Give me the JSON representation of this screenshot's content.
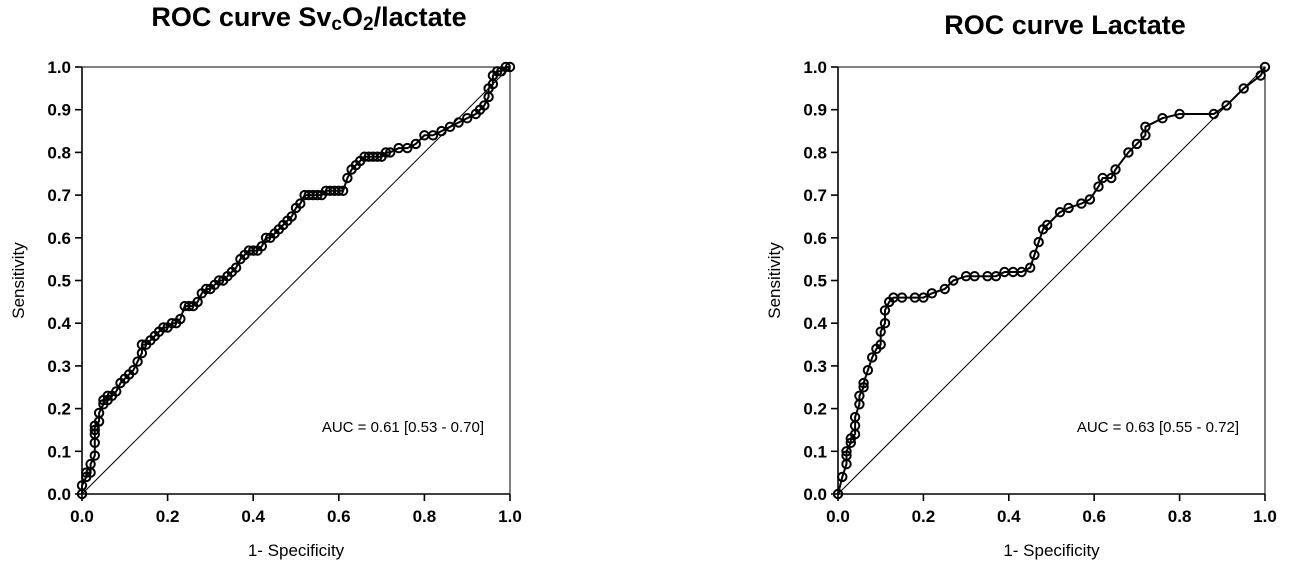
{
  "chart_data": [
    {
      "type": "line",
      "title_main": "ROC curve Sv",
      "title_sub1": "c",
      "title_mid": "O",
      "title_sub2": "2",
      "title_end": "/lactate",
      "xlabel": "1- Specificity",
      "ylabel": "Sensitivity",
      "xlim": [
        0,
        1
      ],
      "ylim": [
        0,
        1
      ],
      "x_ticks": [
        "0.0",
        "0.2",
        "0.4",
        "0.6",
        "0.8",
        "1.0"
      ],
      "y_ticks": [
        "0.0",
        "0.1",
        "0.2",
        "0.3",
        "0.4",
        "0.5",
        "0.6",
        "0.7",
        "0.8",
        "0.9",
        "1.0"
      ],
      "annotation": "AUC = 0.61 [0.53 - 0.70]",
      "reference_line": true,
      "series": [
        {
          "x": [
            0.0,
            0.0,
            0.01,
            0.01,
            0.02,
            0.02,
            0.03,
            0.03,
            0.03,
            0.03,
            0.03,
            0.04,
            0.04,
            0.05,
            0.05,
            0.06,
            0.06,
            0.07,
            0.08,
            0.09,
            0.1,
            0.11,
            0.12,
            0.13,
            0.14,
            0.14,
            0.15,
            0.16,
            0.17,
            0.18,
            0.19,
            0.2,
            0.21,
            0.22,
            0.23,
            0.24,
            0.25,
            0.26,
            0.27,
            0.28,
            0.29,
            0.3,
            0.31,
            0.32,
            0.33,
            0.34,
            0.35,
            0.36,
            0.37,
            0.38,
            0.39,
            0.4,
            0.41,
            0.42,
            0.43,
            0.44,
            0.45,
            0.46,
            0.47,
            0.48,
            0.49,
            0.5,
            0.51,
            0.52,
            0.53,
            0.54,
            0.55,
            0.56,
            0.57,
            0.58,
            0.59,
            0.6,
            0.61,
            0.62,
            0.63,
            0.64,
            0.65,
            0.66,
            0.67,
            0.68,
            0.69,
            0.7,
            0.71,
            0.72,
            0.74,
            0.76,
            0.78,
            0.8,
            0.82,
            0.84,
            0.86,
            0.88,
            0.9,
            0.92,
            0.93,
            0.94,
            0.95,
            0.95,
            0.96,
            0.96,
            0.97,
            0.98,
            0.99,
            1.0
          ],
          "y": [
            0.0,
            0.02,
            0.04,
            0.05,
            0.05,
            0.07,
            0.09,
            0.12,
            0.14,
            0.15,
            0.16,
            0.17,
            0.19,
            0.21,
            0.22,
            0.22,
            0.23,
            0.23,
            0.24,
            0.26,
            0.27,
            0.28,
            0.29,
            0.31,
            0.33,
            0.35,
            0.35,
            0.36,
            0.37,
            0.38,
            0.39,
            0.39,
            0.4,
            0.4,
            0.41,
            0.44,
            0.44,
            0.44,
            0.45,
            0.47,
            0.48,
            0.48,
            0.49,
            0.5,
            0.5,
            0.51,
            0.52,
            0.53,
            0.55,
            0.56,
            0.57,
            0.57,
            0.57,
            0.58,
            0.6,
            0.6,
            0.61,
            0.62,
            0.63,
            0.64,
            0.65,
            0.67,
            0.68,
            0.7,
            0.7,
            0.7,
            0.7,
            0.7,
            0.71,
            0.71,
            0.71,
            0.71,
            0.71,
            0.74,
            0.76,
            0.77,
            0.78,
            0.79,
            0.79,
            0.79,
            0.79,
            0.79,
            0.8,
            0.8,
            0.81,
            0.81,
            0.82,
            0.84,
            0.84,
            0.85,
            0.86,
            0.87,
            0.88,
            0.89,
            0.9,
            0.91,
            0.93,
            0.95,
            0.96,
            0.98,
            0.99,
            0.99,
            1.0,
            1.0
          ]
        }
      ]
    },
    {
      "type": "line",
      "title": "ROC curve Lactate",
      "xlabel": "1- Specificity",
      "ylabel": "Sensitivity",
      "xlim": [
        0,
        1
      ],
      "ylim": [
        0,
        1
      ],
      "x_ticks": [
        "0.0",
        "0.2",
        "0.4",
        "0.6",
        "0.8",
        "1.0"
      ],
      "y_ticks": [
        "0.0",
        "0.1",
        "0.2",
        "0.3",
        "0.4",
        "0.5",
        "0.6",
        "0.7",
        "0.8",
        "0.9",
        "1.0"
      ],
      "annotation": "AUC = 0.63 [0.55 - 0.72]",
      "reference_line": true,
      "series": [
        {
          "x": [
            0.0,
            0.01,
            0.02,
            0.02,
            0.02,
            0.03,
            0.03,
            0.04,
            0.04,
            0.04,
            0.05,
            0.05,
            0.06,
            0.06,
            0.07,
            0.08,
            0.09,
            0.1,
            0.1,
            0.11,
            0.11,
            0.12,
            0.13,
            0.15,
            0.18,
            0.2,
            0.22,
            0.25,
            0.27,
            0.3,
            0.32,
            0.35,
            0.37,
            0.39,
            0.41,
            0.43,
            0.45,
            0.46,
            0.47,
            0.48,
            0.49,
            0.52,
            0.54,
            0.57,
            0.59,
            0.61,
            0.62,
            0.64,
            0.65,
            0.68,
            0.7,
            0.72,
            0.72,
            0.76,
            0.8,
            0.88,
            0.91,
            0.95,
            0.99,
            1.0
          ],
          "y": [
            0.0,
            0.04,
            0.07,
            0.09,
            0.1,
            0.12,
            0.13,
            0.14,
            0.16,
            0.18,
            0.21,
            0.23,
            0.25,
            0.26,
            0.29,
            0.32,
            0.34,
            0.35,
            0.38,
            0.4,
            0.43,
            0.45,
            0.46,
            0.46,
            0.46,
            0.46,
            0.47,
            0.48,
            0.5,
            0.51,
            0.51,
            0.51,
            0.51,
            0.52,
            0.52,
            0.52,
            0.53,
            0.56,
            0.59,
            0.62,
            0.63,
            0.66,
            0.67,
            0.68,
            0.69,
            0.72,
            0.74,
            0.74,
            0.76,
            0.8,
            0.82,
            0.84,
            0.86,
            0.88,
            0.89,
            0.89,
            0.91,
            0.95,
            0.98,
            1.0
          ]
        }
      ]
    }
  ]
}
